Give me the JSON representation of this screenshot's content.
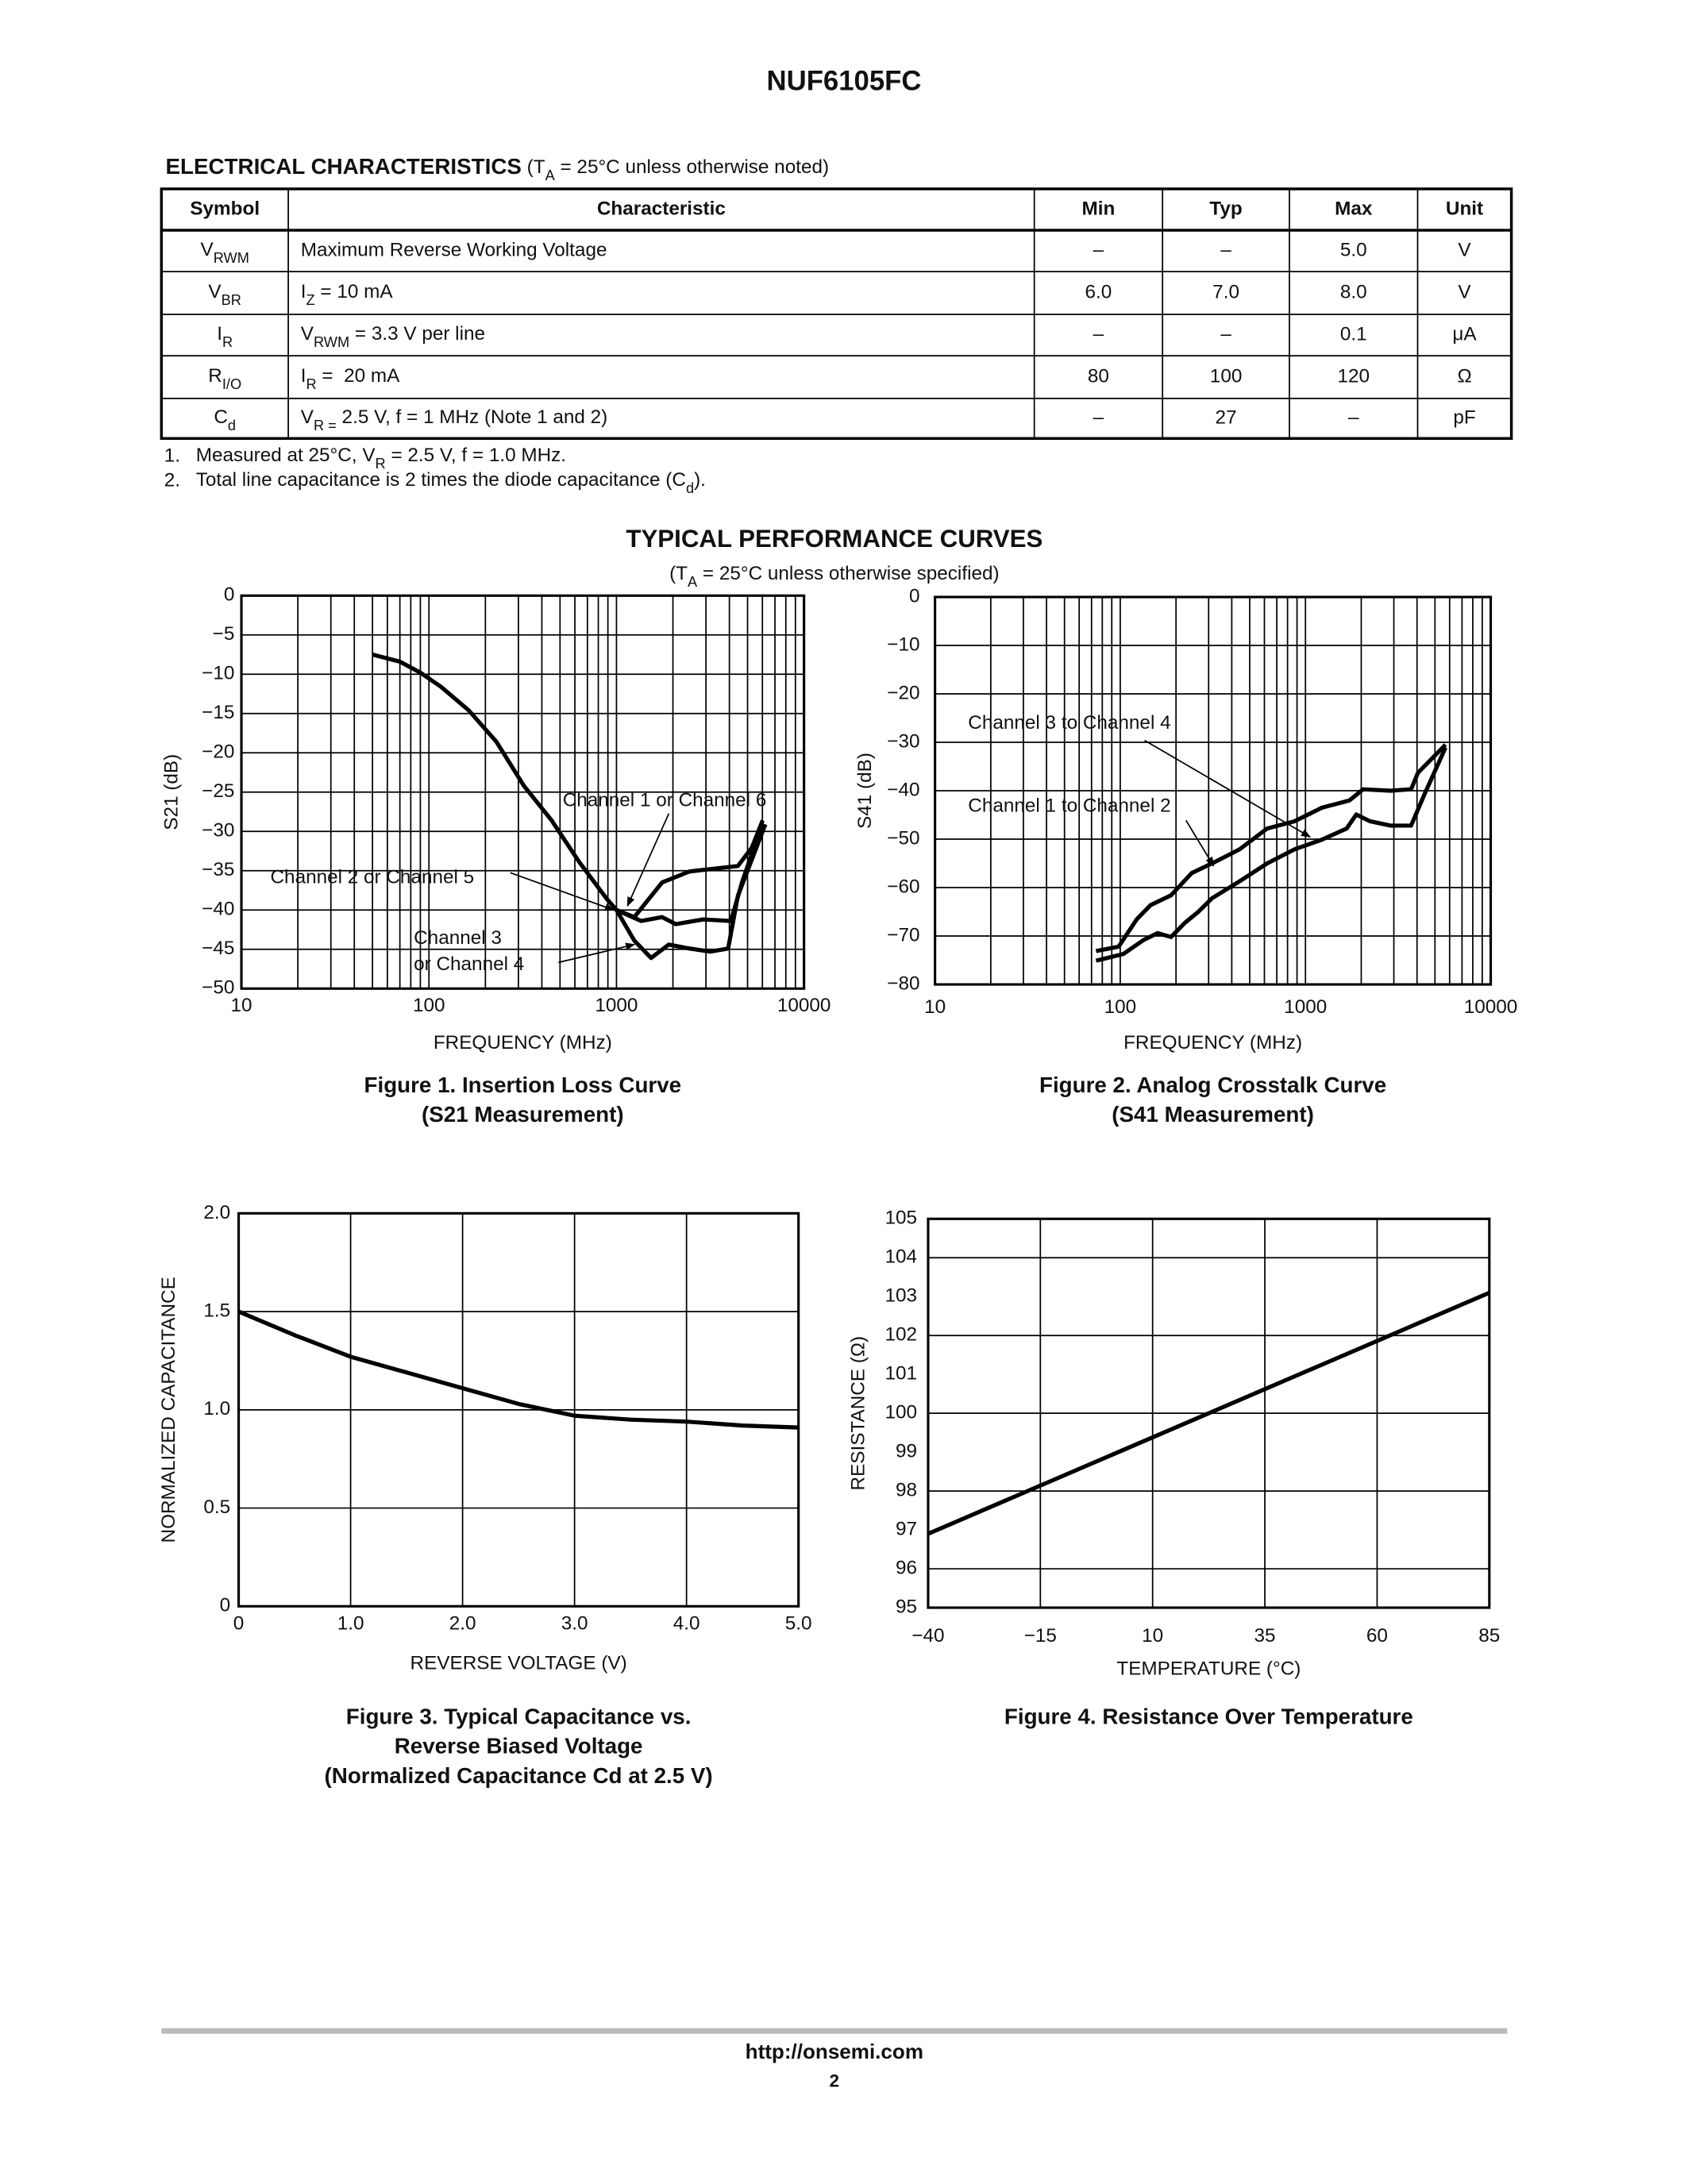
{
  "header": {
    "title": "NUF6105FC"
  },
  "electrical": {
    "title": "ELECTRICAL CHARACTERISTICS",
    "condition": [
      " (T",
      {
        "sub": "A"
      },
      " = 25°C unless otherwise noted)"
    ]
  },
  "table": {
    "columns": [
      "Symbol",
      "Characteristic",
      "Min",
      "Typ",
      "Max",
      "Unit"
    ],
    "rows": [
      [
        [
          "V",
          {
            "sub": "RWM"
          }
        ],
        "Maximum Reverse Working Voltage",
        "–",
        "–",
        "5.0",
        "V"
      ],
      [
        [
          "V",
          {
            "sub": "BR"
          }
        ],
        [
          "I",
          {
            "sub": "Z"
          },
          " = 10 mA"
        ],
        "6.0",
        "7.0",
        "8.0",
        "V"
      ],
      [
        [
          "I",
          {
            "sub": "R"
          }
        ],
        [
          "V",
          {
            "sub": "RWM"
          },
          " = 3.3 V per line"
        ],
        "–",
        "–",
        "0.1",
        "μA"
      ],
      [
        [
          "R",
          {
            "sub": "I/O"
          }
        ],
        [
          "I",
          {
            "sub": "R"
          },
          " =  20 mA"
        ],
        "80",
        "100",
        "120",
        "Ω"
      ],
      [
        [
          "C",
          {
            "sub": "d"
          }
        ],
        [
          "V",
          {
            "sub": "R ="
          },
          " 2.5 V, f = 1 MHz (Note 1 and 2)"
        ],
        "–",
        "27",
        "–",
        "pF"
      ]
    ]
  },
  "notes": [
    {
      "number": "1.",
      "text": [
        "Measured at 25°C, V",
        {
          "sub": "R"
        },
        " = 2.5 V, f = 1.0 MHz."
      ]
    },
    {
      "number": "2.",
      "text": [
        "Total line capacitance is 2 times the diode capacitance (C",
        {
          "sub": "d"
        },
        ")."
      ]
    }
  ],
  "section": {
    "title": "TYPICAL PERFORMANCE CURVES",
    "subtitle": [
      "(T",
      {
        "sub": "A"
      },
      " = 25°C unless otherwise specified)"
    ]
  },
  "chart_data": [
    {
      "type": "line",
      "title": [
        "Figure 1. Insertion Loss Curve",
        "(S21 Measurement)"
      ],
      "xlabel": "FREQUENCY (MHz)",
      "ylabel": "S21 (dB)",
      "xscale": "log",
      "xlim": [
        10,
        10000
      ],
      "ylim": [
        -50,
        0
      ],
      "xticks": [
        10,
        100,
        1000,
        10000
      ],
      "xminorgrid": [
        20,
        30,
        40,
        50,
        60,
        70,
        80,
        90,
        200,
        300,
        400,
        500,
        600,
        700,
        800,
        900,
        2000,
        3000,
        4000,
        5000,
        6000,
        7000,
        8000,
        9000
      ],
      "yticks": [
        {
          "value": -50,
          "label": "−50"
        },
        {
          "value": -45,
          "label": "−45"
        },
        {
          "value": -40,
          "label": "−40"
        },
        {
          "value": -35,
          "label": "−35"
        },
        {
          "value": -30,
          "label": "−30"
        },
        {
          "value": -25,
          "label": "−25"
        },
        {
          "value": -20,
          "label": "−20"
        },
        {
          "value": -15,
          "label": "−15"
        },
        {
          "value": -10,
          "label": "−10"
        },
        {
          "value": -5,
          "label": "−5"
        },
        0
      ],
      "grid": true,
      "series": [
        {
          "color": "#000000",
          "x": [
            50,
            70,
            90,
            116,
            163,
            229,
            321,
            451,
            633,
            889,
            1000
          ],
          "values": [
            -7.5,
            -8.4,
            -9.8,
            -11.6,
            -14.6,
            -18.6,
            -24.2,
            -28.6,
            -33.9,
            -38.6,
            -40
          ]
        },
        {
          "color": "#000000",
          "x": [
            1000,
            1245,
            1750,
            2450,
            3430,
            4440,
            5260,
            6020
          ],
          "values": [
            -40,
            -40.9,
            -36.5,
            -35.1,
            -34.7,
            -34.4,
            -32.1,
            -28.6
          ]
        },
        {
          "color": "#000000",
          "x": [
            1000,
            1355,
            1750,
            2070,
            2900,
            4075,
            4670,
            5710
          ],
          "values": [
            -40,
            -41.4,
            -40.9,
            -41.8,
            -41.2,
            -41.4,
            -36.5,
            -30.4
          ]
        },
        {
          "color": "#000000",
          "x": [
            1000,
            1245,
            1530,
            1900,
            2450,
            3160,
            3940,
            4440,
            6220
          ],
          "values": [
            -40,
            -43.9,
            -46.1,
            -44.4,
            -44.9,
            -45.3,
            -44.9,
            -38.2,
            -29.1
          ]
        }
      ],
      "annotations": [
        [
          "Channel 1 or Channel 6"
        ],
        [
          "Channel 2 or Channel 5"
        ],
        [
          "Channel 3",
          "or Channel 4"
        ]
      ]
    },
    {
      "type": "line",
      "title": [
        "Figure 2. Analog Crosstalk Curve",
        "(S41 Measurement)"
      ],
      "xlabel": "FREQUENCY (MHz)",
      "ylabel": "S41 (dB)",
      "xscale": "log",
      "xlim": [
        10,
        10000
      ],
      "ylim": [
        -80,
        0
      ],
      "xticks": [
        10,
        100,
        1000,
        10000
      ],
      "xminorgrid": [
        20,
        30,
        40,
        50,
        60,
        70,
        80,
        90,
        200,
        300,
        400,
        500,
        600,
        700,
        800,
        900,
        2000,
        3000,
        4000,
        5000,
        6000,
        7000,
        8000,
        9000
      ],
      "yticks": [
        {
          "value": -80,
          "label": "−80"
        },
        {
          "value": -70,
          "label": "−70"
        },
        {
          "value": -60,
          "label": "−60"
        },
        {
          "value": -50,
          "label": "−50"
        },
        {
          "value": -40,
          "label": "−40"
        },
        {
          "value": -30,
          "label": "−30"
        },
        {
          "value": -20,
          "label": "−20"
        },
        {
          "value": -10,
          "label": "−10"
        },
        0
      ],
      "grid": true,
      "series": [
        {
          "color": "#000000",
          "x": [
            74,
            98,
            123,
            146,
            188,
            243,
            313,
            441,
            621,
            873,
            1227,
            1726,
            2047,
            2877,
            3715,
            4047,
            4800,
            5700
          ],
          "values": [
            -73.1,
            -72.2,
            -66.5,
            -63.6,
            -61.6,
            -57,
            -55,
            -52.1,
            -47.8,
            -46.3,
            -43.5,
            -42,
            -39.7,
            -40,
            -39.7,
            -36.3,
            -33.4,
            -30.5
          ]
        },
        {
          "color": "#000000",
          "x": [
            74,
            104,
            134,
            159,
            188,
            223,
            264,
            313,
            441,
            621,
            873,
            1227,
            1668,
            1880,
            2228,
            2877,
            3715,
            4406,
            5700
          ],
          "values": [
            -75.1,
            -73.7,
            -70.8,
            -69.4,
            -70.2,
            -67.3,
            -65,
            -62.2,
            -58.7,
            -55,
            -52.1,
            -50.1,
            -47.8,
            -44.9,
            -46.3,
            -47.2,
            -47.2,
            -40.6,
            -31.1
          ]
        }
      ],
      "annotations": [
        [
          "Channel 3 to Channel 4"
        ],
        [
          "Channel 1 to Channel 2"
        ]
      ]
    },
    {
      "type": "line",
      "title": [
        "Figure 3. Typical Capacitance vs.",
        "Reverse Biased Voltage",
        "(Normalized Capacitance Cd at 2.5 V)"
      ],
      "xlabel": "REVERSE VOLTAGE (V)",
      "ylabel": "NORMALIZED CAPACITANCE",
      "xlim": [
        0,
        5
      ],
      "ylim": [
        0,
        2
      ],
      "xticks": [
        0,
        {
          "value": 1,
          "label": "1.0"
        },
        {
          "value": 2,
          "label": "2.0"
        },
        {
          "value": 3,
          "label": "3.0"
        },
        {
          "value": 4,
          "label": "4.0"
        },
        {
          "value": 5,
          "label": "5.0"
        }
      ],
      "yticks": [
        0,
        0.5,
        {
          "value": 1,
          "label": "1.0"
        },
        1.5,
        {
          "value": 2,
          "label": "2.0"
        }
      ],
      "grid": true,
      "series": [
        {
          "color": "#000000",
          "x": [
            0,
            0.5,
            1,
            1.5,
            2,
            2.5,
            3,
            3.5,
            4,
            4.5,
            5
          ],
          "values": [
            1.5,
            1.38,
            1.27,
            1.19,
            1.11,
            1.03,
            0.97,
            0.95,
            0.94,
            0.92,
            0.91
          ]
        }
      ]
    },
    {
      "type": "line",
      "title": [
        "Figure 4. Resistance Over Temperature"
      ],
      "xlabel": "TEMPERATURE (°C)",
      "ylabel": "RESISTANCE (Ω)",
      "xlim": [
        -40,
        85
      ],
      "ylim": [
        95,
        105
      ],
      "xticks": [
        {
          "value": -40,
          "label": "−40"
        },
        {
          "value": -15,
          "label": "−15"
        },
        10,
        35,
        60,
        85
      ],
      "yticks": [
        95,
        96,
        97,
        98,
        99,
        100,
        101,
        102,
        103,
        104,
        105
      ],
      "ygrid": [
        96,
        98,
        100,
        102,
        104
      ],
      "grid": true,
      "series": [
        {
          "color": "#000000",
          "x": [
            -40,
            85
          ],
          "values": [
            96.9,
            103.1
          ]
        }
      ]
    }
  ],
  "footer": {
    "url": "http://onsemi.com",
    "page": "2"
  }
}
